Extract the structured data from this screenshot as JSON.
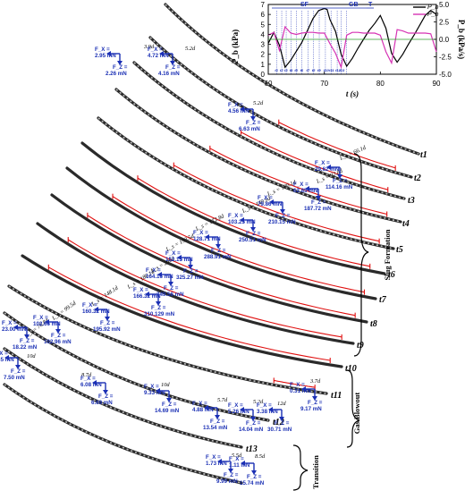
{
  "inset": {
    "ylabel_left": "P_b (kPa)",
    "ylabel_right": "Ṗ_b (kPa/s)",
    "xlabel": "t (s)",
    "x_ticks": [
      "60",
      "70",
      "80",
      "90"
    ],
    "y_left_ticks": [
      "0",
      "1",
      "2",
      "3",
      "4",
      "5",
      "6",
      "7"
    ],
    "y_right_ticks": [
      "5.0",
      "2.5",
      "0.0",
      "-2.5",
      "-5.0"
    ],
    "legend": [
      "P_b",
      "Ṗ_b"
    ],
    "regions": [
      "SF",
      "GB",
      "T"
    ]
  },
  "chart_data": {
    "type": "line",
    "xlabel": "t (s)",
    "ylabel": "P_b (kPa)",
    "y2label": "Ṗ_b (kPa/s)",
    "xlim": [
      60,
      90
    ],
    "ylim": [
      0,
      7
    ],
    "y2lim": [
      -5.0,
      5.0
    ],
    "series": [
      {
        "name": "P_b",
        "color": "#000000",
        "axis": "left",
        "x": [
          60,
          61,
          62,
          63,
          64,
          65,
          66,
          67,
          68,
          69,
          70,
          70.5,
          71,
          72,
          73,
          74,
          75,
          76,
          77,
          78,
          79,
          80,
          81,
          82,
          83,
          84,
          85,
          86,
          87,
          88,
          89,
          90
        ],
        "y": [
          3.1,
          4.2,
          2.9,
          0.7,
          1.4,
          2.3,
          3.2,
          4.4,
          5.6,
          6.4,
          6.6,
          6.5,
          5.5,
          4.3,
          2.0,
          0.8,
          1.6,
          2.6,
          3.5,
          4.4,
          5.1,
          5.9,
          4.6,
          2.1,
          1.2,
          2.0,
          3.0,
          3.9,
          4.9,
          5.9,
          6.4,
          6.0
        ]
      },
      {
        "name": "Ṗ_b",
        "color": "#d633b4",
        "axis": "right",
        "x": [
          60,
          61,
          62,
          63,
          64,
          65,
          66,
          67,
          68,
          69,
          70,
          71,
          72,
          73,
          74,
          75,
          76,
          77,
          78,
          79,
          80,
          81,
          82,
          83,
          84,
          85,
          86,
          87,
          88,
          89,
          90
        ],
        "y": [
          0.6,
          1.0,
          -1.6,
          1.8,
          0.9,
          0.7,
          0.9,
          1.0,
          1.0,
          0.9,
          0.9,
          -0.6,
          -2.0,
          -4.0,
          0.6,
          1.0,
          1.0,
          0.9,
          0.9,
          0.9,
          0.6,
          -1.8,
          -3.4,
          1.4,
          1.2,
          0.9,
          0.9,
          0.9,
          0.9,
          0.8,
          -1.8
        ]
      },
      {
        "name": "reference",
        "color": "#2c9b2c",
        "axis": "right",
        "x": [
          60,
          90
        ],
        "y": [
          0.0,
          0.0
        ]
      }
    ],
    "vlines": [
      61.5,
      62.4,
      63.2,
      64.1,
      65.0,
      66.0,
      67.1,
      68.1,
      69.1,
      70.2,
      71.2,
      72.3,
      73.0,
      74.0
    ]
  },
  "time_labels": [
    "t1",
    "t2",
    "t3",
    "t4",
    "t5",
    "t6",
    "t7",
    "t8",
    "t9",
    "t10",
    "t11",
    "t12",
    "t13"
  ],
  "phases": {
    "slug": "Slug Formation",
    "gas": "Gas Blowout",
    "transition": "Transition"
  },
  "length_labels": [
    {
      "text": "5.2d"
    },
    {
      "text": "3.9d"
    },
    {
      "text": "5.2d"
    },
    {
      "text": "L_s = 66.1d"
    },
    {
      "text": "L_s = 92.8d"
    },
    {
      "text": "L_s = 126.1d"
    },
    {
      "text": "L_s = 149.9d"
    },
    {
      "text": "L_s = 172.8d"
    },
    {
      "text": "L_s = 193.5d"
    },
    {
      "text": "L_s = 200d"
    },
    {
      "text": "L_s = 186.1d"
    },
    {
      "text": "L_s = 148.1d"
    },
    {
      "text": "L_s = 99.5d"
    },
    {
      "text": "L_s = 76.8d"
    },
    {
      "text": "10d"
    },
    {
      "text": "8.7d"
    },
    {
      "text": "10d"
    },
    {
      "text": "3.7d"
    },
    {
      "text": "5.7d"
    },
    {
      "text": "5.2d"
    },
    {
      "text": "12d"
    },
    {
      "text": "5.5d"
    },
    {
      "text": "8.5d"
    }
  ],
  "forces": [
    {
      "fx": "F_X =",
      "fxv": "2.95 mN",
      "fz": "F_Z =",
      "fzv": "2.26 mN"
    },
    {
      "fx": "F_X =",
      "fxv": "4.72 mN",
      "fz": "F_Z =",
      "fzv": "4.16 mN"
    },
    {
      "fx": "F_X =",
      "fxv": "4.56 mN",
      "fz": "F_Z =",
      "fzv": "6.63 mN"
    },
    {
      "fx": "F_X =",
      "fxv": "29.62 mN",
      "fz": "F_Z =",
      "fzv": "114.16 mN"
    },
    {
      "fx": "F_X =",
      "fxv": "62.85 mN",
      "fz": "F_Z =",
      "fzv": "187.72 mN"
    },
    {
      "fx": "F_X =",
      "fxv": "79.86 mN",
      "fz": "F_Z =",
      "fzv": "210.15 mN"
    },
    {
      "fx": "F_X =",
      "fxv": "103.25 mN",
      "fz": "F_Z =",
      "fzv": "250.51 mN"
    },
    {
      "fx": "F_X =",
      "fxv": "128.71 mN",
      "fz": "F_Z =",
      "fzv": "288.91 mN"
    },
    {
      "fx": "F_X =",
      "fxv": "152.15 mN",
      "fz": "F_Z =",
      "fzv": "325.27 mN"
    },
    {
      "fx": "F_X =",
      "fxv": "164.16 mN",
      "fz": "F_Z =",
      "fzv": "349.56 mN"
    },
    {
      "fx": "F_X =",
      "fxv": "166.32 mN",
      "fz": "F_Z =",
      "fzv": "310.129 mN"
    },
    {
      "fx": "F_X =",
      "fxv": "160.32 mN",
      "fz": "F_Z =",
      "fzv": "195.92 mN"
    },
    {
      "fx": "F_X =",
      "fxv": "102.66 mN",
      "fz": "F_Z =",
      "fzv": "102.96 mN"
    },
    {
      "fx": "F_X =",
      "fxv": "23.00 mN",
      "fz": "F_Z =",
      "fzv": "18.22 mN"
    },
    {
      "fx": "F_X =",
      "fxv": "9.35 mN",
      "fz": "F_Z =",
      "fzv": "7.50 mN"
    },
    {
      "fx": "F_X =",
      "fxv": "6.08 mN",
      "fz": "F_Z =",
      "fzv": "6.69 mN"
    },
    {
      "fx": "F_X =",
      "fxv": "9.33 mN",
      "fz": "F_Z =",
      "fzv": "14.69 mN"
    },
    {
      "fx": "F_X =",
      "fxv": "0.31 mN",
      "fz": "F_Z =",
      "fzv": "9.17 mN"
    },
    {
      "fx": "F_X =",
      "fxv": "4.88 mN",
      "fz": "F_Z =",
      "fzv": "13.54 mN"
    },
    {
      "fx": "F_X =",
      "fxv": "5.26 mN",
      "fz": "F_Z =",
      "fzv": "14.04 mN"
    },
    {
      "fx": "F_X =",
      "fxv": "3.38 mN",
      "fz": "F_Z =",
      "fzv": "30.71 mN"
    },
    {
      "fx": "F_X =",
      "fxv": "1.73 mN",
      "fz": "F_Z =",
      "fzv": "9.99 mN"
    },
    {
      "fx": "F_X =",
      "fxv": "1.11 mN",
      "fz": "F_Z =",
      "fzv": "15.74 mN"
    }
  ]
}
